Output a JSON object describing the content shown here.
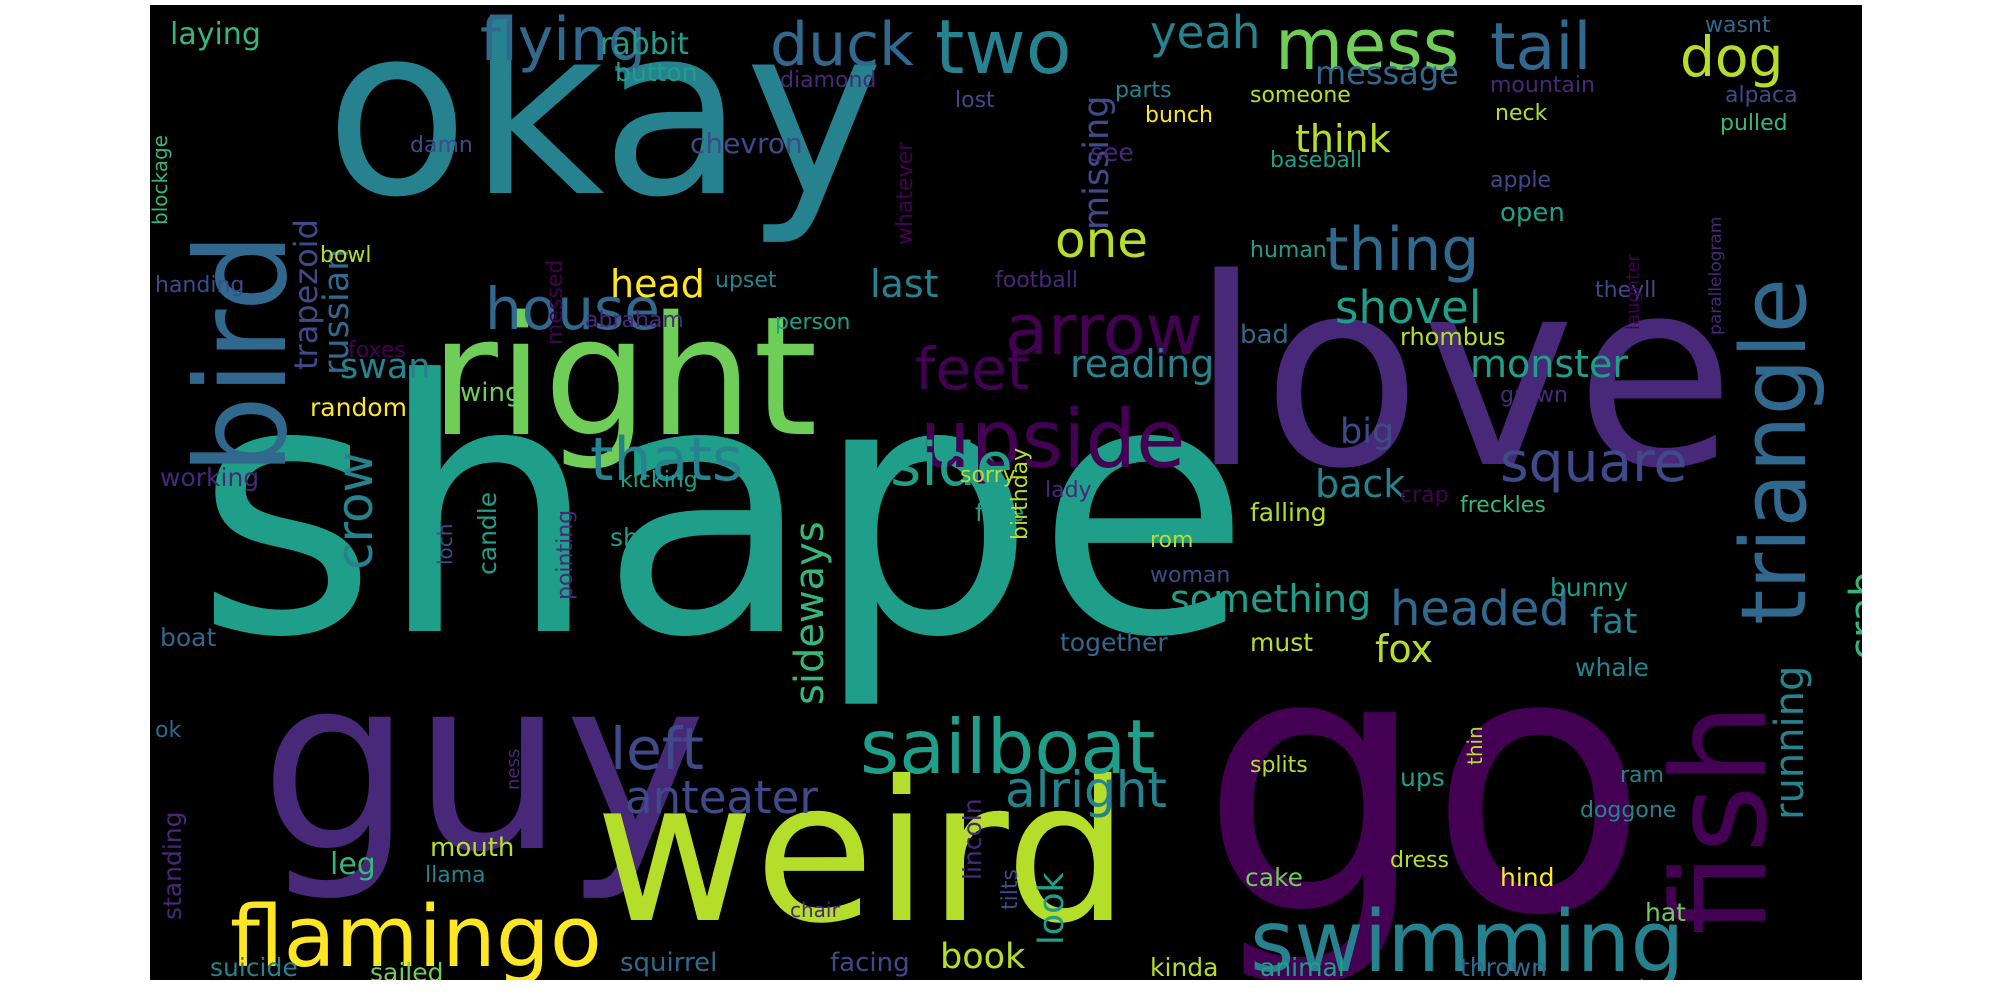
{
  "palette": [
    "#440154",
    "#482878",
    "#3e4a89",
    "#31688e",
    "#26828e",
    "#1f9e89",
    "#35b779",
    "#6ece58",
    "#b5de2b",
    "#fde725"
  ],
  "words": [
    "okay",
    "shape",
    "guy",
    "weird",
    "love",
    "go",
    "right",
    "bird",
    "fish",
    "triangle",
    "flamingo",
    "swimming",
    "sailboat",
    "upside",
    "arrow",
    "two",
    "mess",
    "tail",
    "flying",
    "duck",
    "dog",
    "yeah",
    "house",
    "thats",
    "side",
    "thing",
    "square",
    "left",
    "one",
    "feet",
    "crow",
    "alright",
    "anteater",
    "headed",
    "running",
    "crab",
    "shovel",
    "monster",
    "think",
    "message",
    "something",
    "fox",
    "head",
    "last",
    "reading",
    "missing",
    "sideways",
    "back",
    "big",
    "fat",
    "russian",
    "trapezoid",
    "laying",
    "rabbit",
    "button",
    "diamond",
    "lost",
    "parts",
    "someone",
    "mountain",
    "alpaca",
    "wasnt",
    "neck",
    "pulled",
    "chevron",
    "see",
    "bunch",
    "baseball",
    "apple",
    "damn",
    "whatever",
    "open",
    "human",
    "blockage",
    "bowl",
    "handing",
    "upset",
    "abraham",
    "person",
    "football",
    "theyll",
    "laughter",
    "rhombus",
    "bad",
    "grown",
    "foxes",
    "wing",
    "swan",
    "random",
    "working",
    "kicking",
    "sorry",
    "lady",
    "free",
    "falling",
    "freckles",
    "crap",
    "parallelogram",
    "rom",
    "woman",
    "shit",
    "birthday",
    "candle",
    "loch",
    "boat",
    "pointing",
    "together",
    "must",
    "bunny",
    "whale",
    "ok",
    "ness",
    "thin",
    "splits",
    "ups",
    "ram",
    "doggone",
    "lincoln",
    "standing",
    "leg",
    "mouth",
    "llama",
    "tilts",
    "cake",
    "dress",
    "hind",
    "hat",
    "chair",
    "look",
    "book",
    "squirrel",
    "facing",
    "kinda",
    "animal",
    "thrown",
    "suicide",
    "sailed",
    "messed"
  ]
}
